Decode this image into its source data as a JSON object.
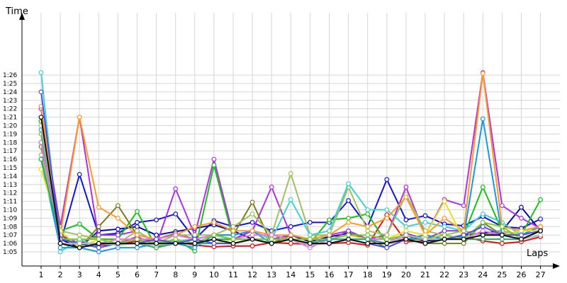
{
  "chart_data": {
    "type": "line",
    "title": "",
    "ylabel": "Time",
    "xlabel": "Laps",
    "x": [
      1,
      2,
      3,
      4,
      5,
      6,
      7,
      8,
      9,
      10,
      11,
      12,
      13,
      14,
      15,
      16,
      17,
      18,
      19,
      20,
      21,
      22,
      23,
      24,
      25,
      26,
      27
    ],
    "y_ticks": [
      "1:05",
      "1:06",
      "1:07",
      "1:08",
      "1:09",
      "1:10",
      "1:11",
      "1:12",
      "1:13",
      "1:14",
      "1:15",
      "1:16",
      "1:17",
      "1:18",
      "1:19",
      "1:20",
      "1:21",
      "1:22",
      "1:23",
      "1:24",
      "1:25",
      "1:26"
    ],
    "ylim": [
      64,
      87
    ],
    "grid": true,
    "series": [
      {
        "color": "#e01010",
        "values": [
          79.0,
          66.0,
          65.6,
          65.8,
          65.9,
          66.3,
          66.4,
          66.2,
          65.8,
          65.6,
          65.7,
          65.7,
          66.1,
          66.0,
          65.9,
          66.0,
          66.1,
          65.8,
          69.4,
          66.2,
          66.3,
          66.5,
          66.8,
          66.3,
          66.0,
          66.2,
          66.8
        ]
      },
      {
        "color": "#1414d8",
        "values": [
          80.0,
          66.0,
          74.2,
          67.0,
          67.2,
          68.5,
          68.8,
          69.5,
          66.5,
          68.7,
          68.0,
          68.5,
          67.5,
          68.0,
          68.5,
          68.5,
          71.1,
          68.0,
          73.6,
          68.8,
          69.3,
          68.3,
          68.1,
          69.2,
          68.0,
          67.8,
          68.9
        ]
      },
      {
        "color": "#0a0aa0",
        "values": [
          78.0,
          66.5,
          65.5,
          67.5,
          67.7,
          68.0,
          67.0,
          67.4,
          67.8,
          68.2,
          67.5,
          66.5,
          66.0,
          67.0,
          66.2,
          66.8,
          67.2,
          66.5,
          66.0,
          67.0,
          66.3,
          66.5,
          67.0,
          67.2,
          67.5,
          70.3,
          67.5
        ]
      },
      {
        "color": "#b030e8",
        "values": [
          82.0,
          68.0,
          81.0,
          66.5,
          66.0,
          66.8,
          65.8,
          72.5,
          67.0,
          76.0,
          67.0,
          67.5,
          72.7,
          67.0,
          66.5,
          67.0,
          67.5,
          66.5,
          67.0,
          72.7,
          67.0,
          71.2,
          70.5,
          86.3,
          70.5,
          69.0,
          67.8
        ]
      },
      {
        "color": "#9b30e0",
        "values": [
          80.5,
          67.0,
          66.0,
          67.0,
          67.0,
          67.5,
          66.0,
          66.0,
          66.5,
          67.0,
          66.5,
          67.5,
          66.5,
          67.0,
          66.5,
          66.3,
          67.5,
          66.5,
          66.0,
          67.2,
          66.5,
          67.5,
          67.5,
          67.0,
          67.2,
          67.0,
          67.5
        ]
      },
      {
        "color": "#18c018",
        "values": [
          80.5,
          67.5,
          68.3,
          66.5,
          66.5,
          69.8,
          65.5,
          66.5,
          65.1,
          75.3,
          66.5,
          66.5,
          66.5,
          66.5,
          66.0,
          68.8,
          69.0,
          69.5,
          66.0,
          66.5,
          67.0,
          66.5,
          67.0,
          72.7,
          67.5,
          67.0,
          71.2
        ]
      },
      {
        "color": "#7c7c20",
        "values": [
          77.5,
          67.0,
          65.5,
          68.0,
          70.5,
          67.0,
          66.5,
          67.2,
          66.5,
          67.0,
          67.0,
          70.9,
          66.0,
          67.0,
          66.5,
          66.5,
          67.0,
          66.5,
          65.5,
          66.5,
          66.0,
          66.0,
          66.0,
          68.5,
          67.0,
          67.5,
          68.0
        ]
      },
      {
        "color": "#a0c060",
        "values": [
          76.5,
          67.5,
          67.0,
          66.5,
          66.0,
          67.5,
          66.0,
          67.0,
          67.0,
          67.0,
          68.0,
          69.5,
          67.0,
          74.3,
          67.0,
          67.0,
          72.7,
          67.5,
          67.0,
          71.8,
          67.5,
          67.0,
          67.5,
          67.0,
          67.5,
          67.0,
          68.0
        ]
      },
      {
        "color": "#40d0d0",
        "values": [
          86.3,
          65.0,
          66.5,
          65.5,
          66.0,
          66.5,
          66.0,
          66.3,
          66.5,
          67.0,
          67.0,
          67.5,
          66.5,
          71.2,
          67.0,
          67.5,
          73.1,
          70.0,
          70.0,
          68.0,
          68.5,
          68.0,
          67.5,
          69.5,
          68.5,
          67.0,
          68.0
        ]
      },
      {
        "color": "#1898e8",
        "values": [
          76.0,
          65.5,
          65.5,
          65.0,
          65.5,
          65.5,
          66.0,
          66.0,
          65.5,
          67.0,
          67.0,
          67.5,
          66.0,
          66.5,
          66.0,
          66.0,
          66.5,
          66.5,
          66.0,
          66.5,
          67.0,
          66.5,
          66.8,
          80.8,
          67.0,
          67.0,
          68.0
        ]
      },
      {
        "color": "#ff9a20",
        "values": [
          82.3,
          67.0,
          81.0,
          70.3,
          69.0,
          67.0,
          66.5,
          67.0,
          68.0,
          68.5,
          67.5,
          67.5,
          67.0,
          67.0,
          66.5,
          67.0,
          68.5,
          68.0,
          69.0,
          71.5,
          67.0,
          69.0,
          67.5,
          86.2,
          68.0,
          67.5,
          68.0
        ]
      },
      {
        "color": "#e8e020",
        "values": [
          74.8,
          67.5,
          65.5,
          66.5,
          66.0,
          66.5,
          66.0,
          66.0,
          66.0,
          66.0,
          66.5,
          66.5,
          66.0,
          66.5,
          66.0,
          66.5,
          67.0,
          66.5,
          66.5,
          67.5,
          67.0,
          71.0,
          66.5,
          67.0,
          67.0,
          67.5,
          67.5
        ]
      },
      {
        "color": "#f070f0",
        "values": [
          78.0,
          66.0,
          66.0,
          66.0,
          66.5,
          66.5,
          66.5,
          67.0,
          66.5,
          67.0,
          66.5,
          67.0,
          67.0,
          66.5,
          65.5,
          66.5,
          66.5,
          66.5,
          66.5,
          66.5,
          66.5,
          66.5,
          66.5,
          67.5,
          67.0,
          67.0,
          67.5
        ]
      },
      {
        "color": "#20b060",
        "values": [
          76.0,
          66.5,
          66.0,
          66.0,
          66.0,
          66.0,
          65.5,
          66.0,
          66.0,
          66.5,
          66.5,
          66.5,
          66.5,
          66.5,
          66.0,
          66.0,
          66.5,
          66.5,
          66.0,
          66.5,
          66.5,
          66.5,
          66.5,
          66.5,
          66.5,
          66.5,
          67.0
        ]
      },
      {
        "color": "#7ad020",
        "values": [
          79.0,
          66.5,
          66.5,
          66.5,
          66.0,
          66.5,
          66.0,
          66.5,
          66.0,
          67.0,
          66.5,
          66.5,
          66.5,
          66.5,
          66.5,
          66.5,
          67.0,
          67.0,
          66.5,
          67.0,
          66.5,
          67.0,
          66.5,
          68.5,
          68.0,
          66.5,
          67.5
        ]
      },
      {
        "color": "#28a8a8",
        "values": [
          79.5,
          66.0,
          65.5,
          66.0,
          66.0,
          66.0,
          66.0,
          66.0,
          66.0,
          66.0,
          66.0,
          66.5,
          66.0,
          66.5,
          66.0,
          66.5,
          66.5,
          66.5,
          66.0,
          67.0,
          66.5,
          66.5,
          66.5,
          67.0,
          67.0,
          66.5,
          67.5
        ]
      },
      {
        "color": "#5050f0",
        "values": [
          84.0,
          66.5,
          66.0,
          65.5,
          66.0,
          66.0,
          66.5,
          66.0,
          66.5,
          66.0,
          66.0,
          66.5,
          66.0,
          66.5,
          66.0,
          66.0,
          66.5,
          66.0,
          65.5,
          66.5,
          66.0,
          66.5,
          67.0,
          68.0,
          67.0,
          67.0,
          67.5
        ]
      },
      {
        "color": "#b8b8b8",
        "values": [
          80.0,
          66.0,
          66.0,
          66.0,
          65.8,
          66.0,
          65.8,
          66.0,
          66.0,
          66.5,
          66.0,
          66.5,
          66.0,
          66.5,
          65.8,
          66.0,
          66.5,
          66.0,
          66.0,
          67.0,
          66.5,
          66.5,
          66.5,
          67.0,
          67.0,
          66.5,
          67.0
        ]
      },
      {
        "color": "#101010",
        "values": [
          81.0,
          66.0,
          65.5,
          66.0,
          66.0,
          66.0,
          66.0,
          66.0,
          66.0,
          66.5,
          66.0,
          66.5,
          66.0,
          66.5,
          66.0,
          66.0,
          66.5,
          66.0,
          66.0,
          66.5,
          66.0,
          66.5,
          66.5,
          67.0,
          67.0,
          66.5,
          67.5
        ]
      }
    ]
  }
}
